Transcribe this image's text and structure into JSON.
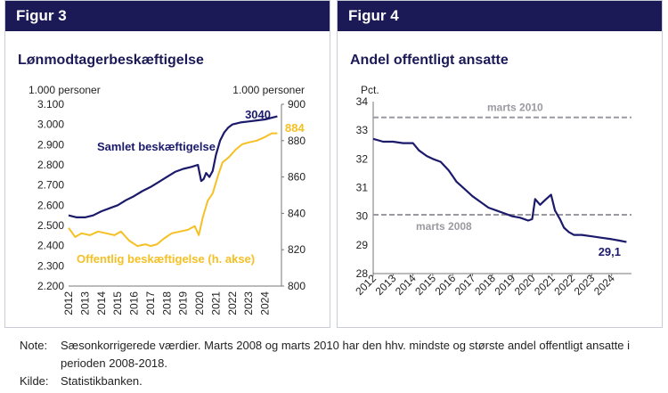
{
  "figures": [
    {
      "label": "Figur 3",
      "title": "Lønmodtagerbeskæftigelse",
      "left_axis_unit": "1.000 personer",
      "right_axis_unit": "1.000 personer",
      "left_ticks": [
        "2.200",
        "2.300",
        "2.400",
        "2.500",
        "2.600",
        "2.700",
        "2.800",
        "2.900",
        "3.000",
        "3.100"
      ],
      "right_ticks": [
        "800",
        "820",
        "840",
        "860",
        "880",
        "900"
      ],
      "x_ticks": [
        "2012",
        "2013",
        "2014",
        "2015",
        "2016",
        "2017",
        "2018",
        "2019",
        "2020",
        "2021",
        "2022",
        "2023",
        "2024"
      ],
      "series_label_total": "Samlet beskæftigelse",
      "series_label_public": "Offentlig beskæftigelse (h. akse)",
      "end_label_total": "3040",
      "end_label_public": "884"
    },
    {
      "label": "Figur 4",
      "title": "Andel offentligt ansatte",
      "axis_unit": "Pct.",
      "y_ticks": [
        "28",
        "29",
        "30",
        "31",
        "32",
        "33",
        "34"
      ],
      "x_ticks": [
        "2012",
        "2013",
        "2014",
        "2015",
        "2016",
        "2017",
        "2018",
        "2019",
        "2020",
        "2021",
        "2022",
        "2023",
        "2024"
      ],
      "ref_label_2010": "marts 2010",
      "ref_label_2008": "marts 2008",
      "end_label": "29,1"
    }
  ],
  "notes": {
    "note_key": "Note:",
    "note_text": "Sæsonkorrigerede værdier. Marts 2008 og marts 2010 har den hhv. mindste og største andel offentligt ansatte i perioden 2008-2018.",
    "source_key": "Kilde:",
    "source_text": "Statistikbanken."
  },
  "colors": {
    "header": "#1b1a57",
    "total": "#1b1a6b",
    "public": "#f5c024",
    "reference": "#9a9aa0"
  },
  "chart_data": [
    {
      "type": "line",
      "title": "Lønmodtagerbeskæftigelse",
      "xlabel": "",
      "ylabel": "1.000 personer",
      "ylim": [
        2200,
        3100
      ],
      "y2lim": [
        800,
        900
      ],
      "xlim": [
        2012,
        2025
      ],
      "series": [
        {
          "name": "Samlet beskæftigelse",
          "axis": "left",
          "x": [
            2012,
            2012.5,
            2013,
            2013.5,
            2014,
            2014.5,
            2015,
            2015.5,
            2016,
            2016.5,
            2017,
            2017.5,
            2018,
            2018.5,
            2019,
            2019.5,
            2019.9,
            2020.1,
            2020.25,
            2020.4,
            2020.6,
            2020.8,
            2021,
            2021.25,
            2021.5,
            2021.75,
            2022,
            2022.5,
            2023,
            2023.5,
            2024,
            2024.5,
            2024.75
          ],
          "values": [
            2550,
            2540,
            2540,
            2550,
            2570,
            2585,
            2600,
            2625,
            2645,
            2670,
            2690,
            2715,
            2740,
            2765,
            2780,
            2790,
            2800,
            2720,
            2730,
            2760,
            2740,
            2770,
            2850,
            2920,
            2960,
            2985,
            3000,
            3010,
            3015,
            3020,
            3025,
            3035,
            3040
          ]
        },
        {
          "name": "Offentlig beskæftigelse (h. akse)",
          "axis": "right",
          "x": [
            2012,
            2012.4,
            2012.8,
            2013.3,
            2013.8,
            2014.3,
            2014.8,
            2015.2,
            2015.7,
            2016.2,
            2016.7,
            2017,
            2017.4,
            2017.8,
            2018.3,
            2018.8,
            2019.3,
            2019.7,
            2019.95,
            2020.2,
            2020.5,
            2020.8,
            2021.1,
            2021.4,
            2021.8,
            2022.2,
            2022.6,
            2023,
            2023.5,
            2024,
            2024.4,
            2024.75
          ],
          "values": [
            832,
            827,
            829,
            828,
            830,
            829,
            828,
            830,
            825,
            822,
            823,
            822,
            823,
            826,
            829,
            830,
            831,
            833,
            828,
            838,
            847,
            851,
            860,
            868,
            871,
            875,
            878,
            879,
            880,
            882,
            884,
            884
          ]
        }
      ]
    },
    {
      "type": "line",
      "title": "Andel offentligt ansatte",
      "xlabel": "",
      "ylabel": "Pct.",
      "ylim": [
        28,
        34
      ],
      "xlim": [
        2012,
        2025
      ],
      "reference_lines": [
        {
          "label": "marts 2010",
          "value": 33.45
        },
        {
          "label": "marts 2008",
          "value": 30.05
        }
      ],
      "series": [
        {
          "name": "",
          "x": [
            2012,
            2012.5,
            2013,
            2013.5,
            2014,
            2014.3,
            2014.7,
            2015,
            2015.4,
            2015.8,
            2016.2,
            2016.6,
            2017,
            2017.4,
            2017.8,
            2018.2,
            2018.6,
            2019,
            2019.4,
            2019.8,
            2020,
            2020.15,
            2020.4,
            2020.7,
            2020.95,
            2021.15,
            2021.4,
            2021.6,
            2021.85,
            2022.1,
            2022.5,
            2023,
            2023.5,
            2024,
            2024.4,
            2024.75
          ],
          "values": [
            32.7,
            32.6,
            32.6,
            32.55,
            32.55,
            32.3,
            32.1,
            32.0,
            31.9,
            31.6,
            31.2,
            30.95,
            30.7,
            30.5,
            30.3,
            30.2,
            30.1,
            30.0,
            29.95,
            29.85,
            29.9,
            30.6,
            30.4,
            30.6,
            30.75,
            30.2,
            29.9,
            29.6,
            29.45,
            29.35,
            29.35,
            29.3,
            29.25,
            29.2,
            29.15,
            29.1
          ]
        }
      ]
    }
  ]
}
